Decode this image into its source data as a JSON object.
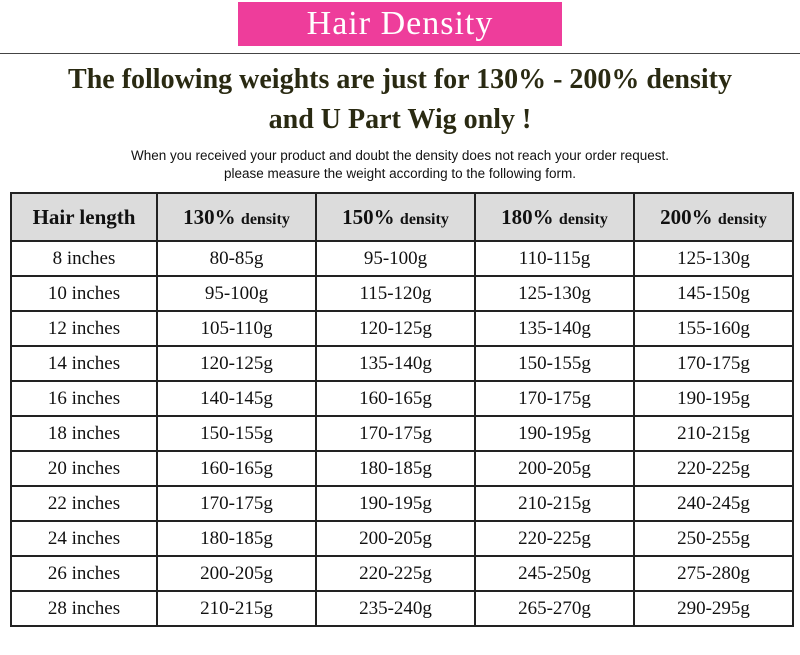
{
  "banner": {
    "title": "Hair Density"
  },
  "headline": {
    "line1": "The following weights are just for 130% - 200% density",
    "line2": "and U Part Wig only !"
  },
  "note": {
    "line1": "When you received your product and doubt the density does not reach your order request.",
    "line2": "please measure the weight according to the following form."
  },
  "colors": {
    "banner_bg": "#ee3d9b",
    "header_bg": "#dcdcdc",
    "headline_text": "#2a2a12"
  },
  "table": {
    "headers": [
      {
        "main": "Hair length",
        "sub": ""
      },
      {
        "main": "130%",
        "sub": "density"
      },
      {
        "main": "150%",
        "sub": "density"
      },
      {
        "main": "180%",
        "sub": "density"
      },
      {
        "main": "200%",
        "sub": "density"
      }
    ],
    "rows": [
      [
        "8 inches",
        "80-85g",
        "95-100g",
        "110-115g",
        "125-130g"
      ],
      [
        "10 inches",
        "95-100g",
        "115-120g",
        "125-130g",
        "145-150g"
      ],
      [
        "12 inches",
        "105-110g",
        "120-125g",
        "135-140g",
        "155-160g"
      ],
      [
        "14 inches",
        "120-125g",
        "135-140g",
        "150-155g",
        "170-175g"
      ],
      [
        "16 inches",
        "140-145g",
        "160-165g",
        "170-175g",
        "190-195g"
      ],
      [
        "18 inches",
        "150-155g",
        "170-175g",
        "190-195g",
        "210-215g"
      ],
      [
        "20 inches",
        "160-165g",
        "180-185g",
        "200-205g",
        "220-225g"
      ],
      [
        "22 inches",
        "170-175g",
        "190-195g",
        "210-215g",
        "240-245g"
      ],
      [
        "24 inches",
        "180-185g",
        "200-205g",
        "220-225g",
        "250-255g"
      ],
      [
        "26 inches",
        "200-205g",
        "220-225g",
        "245-250g",
        "275-280g"
      ],
      [
        "28 inches",
        "210-215g",
        "235-240g",
        "265-270g",
        "290-295g"
      ]
    ]
  }
}
